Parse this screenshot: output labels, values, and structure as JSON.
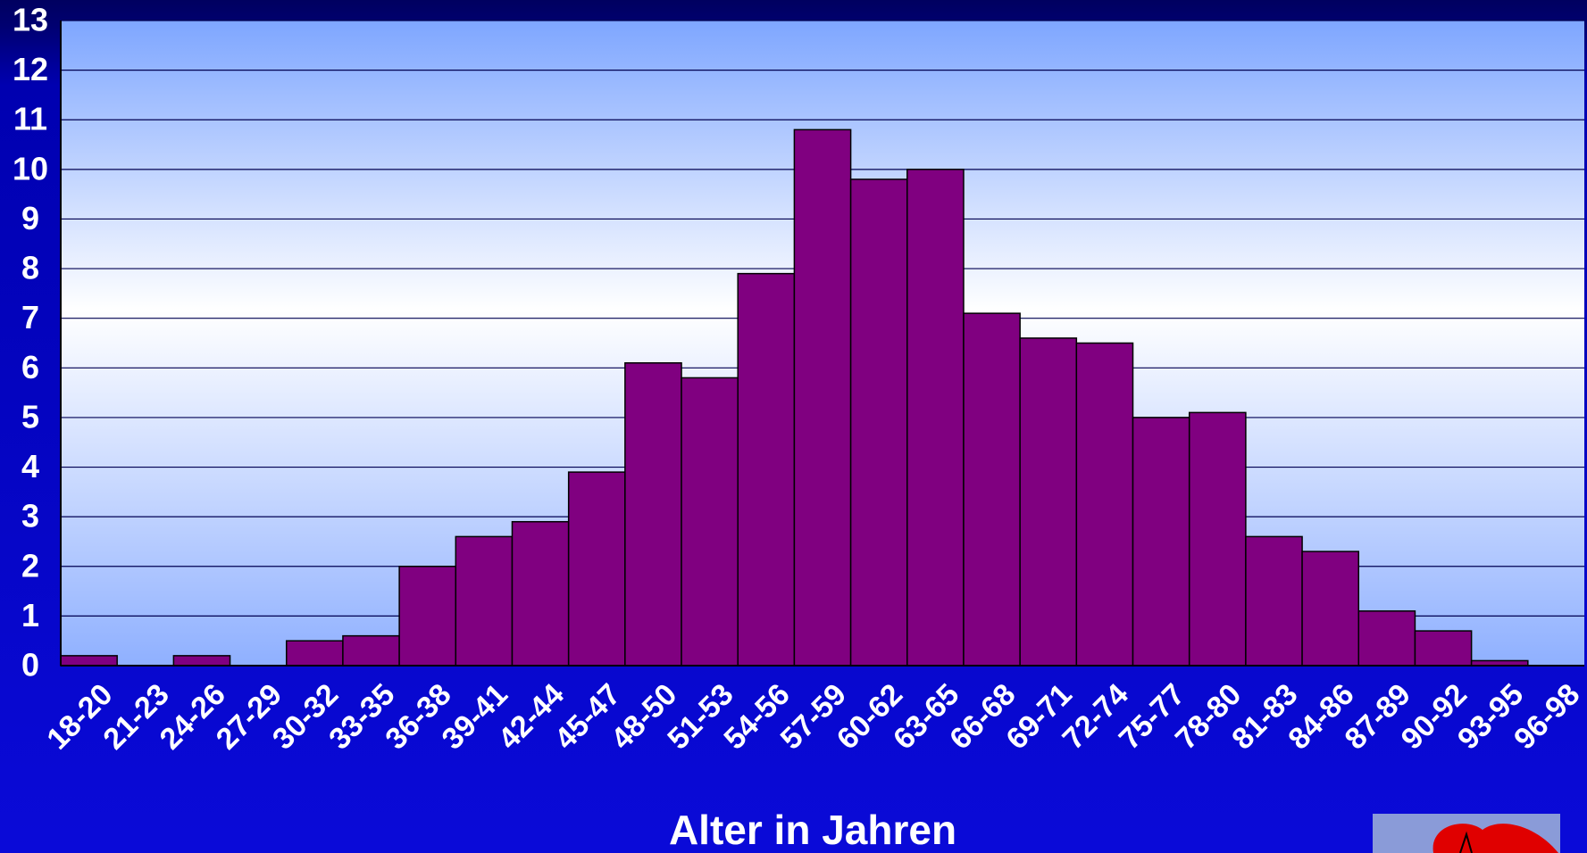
{
  "chart_data": {
    "type": "bar",
    "categories": [
      "18-20",
      "21-23",
      "24-26",
      "27-29",
      "30-32",
      "33-35",
      "36-38",
      "39-41",
      "42-44",
      "45-47",
      "48-50",
      "51-53",
      "54-56",
      "57-59",
      "60-62",
      "63-65",
      "66-68",
      "69-71",
      "72-74",
      "75-77",
      "78-80",
      "81-83",
      "84-86",
      "87-89",
      "90-92",
      "93-95",
      "96-98"
    ],
    "values": [
      0.2,
      0,
      0.2,
      0,
      0.5,
      0.6,
      2.0,
      2.6,
      2.9,
      3.9,
      6.1,
      5.8,
      7.9,
      10.8,
      9.8,
      10.0,
      7.1,
      6.6,
      6.5,
      5.0,
      5.1,
      2.6,
      2.3,
      1.1,
      0.7,
      0.1,
      0
    ],
    "color": "#800080",
    "xlabel": "Alter in Jahren",
    "ylim": [
      0,
      13
    ],
    "yticks": [
      0,
      1,
      2,
      3,
      4,
      5,
      6,
      7,
      8,
      9,
      10,
      11,
      12,
      13
    ],
    "grid": true
  }
}
